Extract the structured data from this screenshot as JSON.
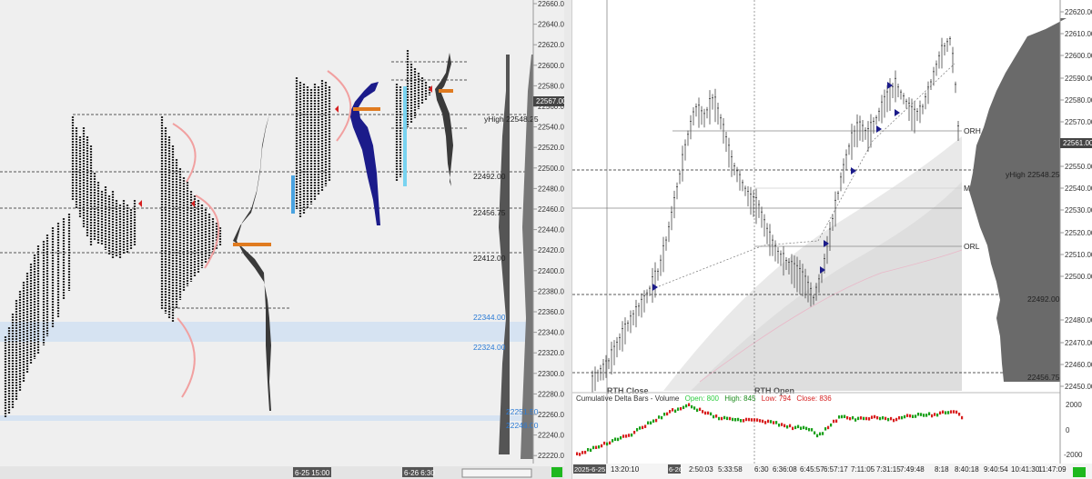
{
  "left": {
    "price_axis": [
      "22660.00",
      "22640.00",
      "22620.00",
      "22600.00",
      "22580.00",
      "22560.00",
      "22540.00",
      "22520.00",
      "22500.00",
      "22480.00",
      "22460.00",
      "22440.00",
      "22420.00",
      "22400.00",
      "22380.00",
      "22360.00",
      "22340.00",
      "22320.00",
      "22300.00",
      "22280.00",
      "22260.00",
      "22240.00",
      "22220.00"
    ],
    "current_price": "22567.00",
    "levels": {
      "yhigh": "yHigh  22548.25",
      "l22492": "22492.00",
      "l22456": "22456.75",
      "l22412": "22412.00",
      "l22344": "22344.00",
      "l22324": "22324.00",
      "l22251": "22251.50",
      "l22246": "22246.00"
    },
    "time_labels": [
      "6-25  15:00",
      "6-26  6:30"
    ]
  },
  "right": {
    "price_axis": [
      "22620.00",
      "22610.00",
      "22600.00",
      "22590.00",
      "22580.00",
      "22570.00",
      "22550.00",
      "22540.00",
      "22530.00",
      "22520.00",
      "22510.00",
      "22500.00",
      "22480.00",
      "22470.00",
      "22460.00",
      "22450.00"
    ],
    "current_price": "22561.00",
    "levels": {
      "yhigh": "yHigh  22548.25",
      "orh": "ORH",
      "m": "M",
      "orl": "ORL",
      "l22492": "22492.00",
      "l22456": "22456.75"
    },
    "annotations": {
      "rth_close": "RTH Close",
      "rth_open": "RTH Open"
    },
    "delta": {
      "title": "Cumulative Delta Bars - Volume",
      "open": "Open: 800",
      "high": "High: 845",
      "low": "Low: 794",
      "close": "Close: 836",
      "axis": [
        "2000",
        "0",
        "-2000"
      ],
      "colors": {
        "open": "#2ecc40",
        "high": "#1a8a1a",
        "low": "#d62020",
        "close": "#d62020",
        "up": "#19a019",
        "down": "#d81e1e"
      }
    },
    "time_labels": [
      "2025-6-25",
      "13:20:10",
      "6-26",
      "2:50:03",
      "5:33:58",
      "6:30",
      "6:36:08",
      "6:45:57",
      "6:57:17",
      "7:11:05",
      "7:31:15",
      "7:49:48",
      "8:18",
      "8:40:18",
      "9:40:54",
      "10:41:30",
      "11:47:09"
    ]
  }
}
